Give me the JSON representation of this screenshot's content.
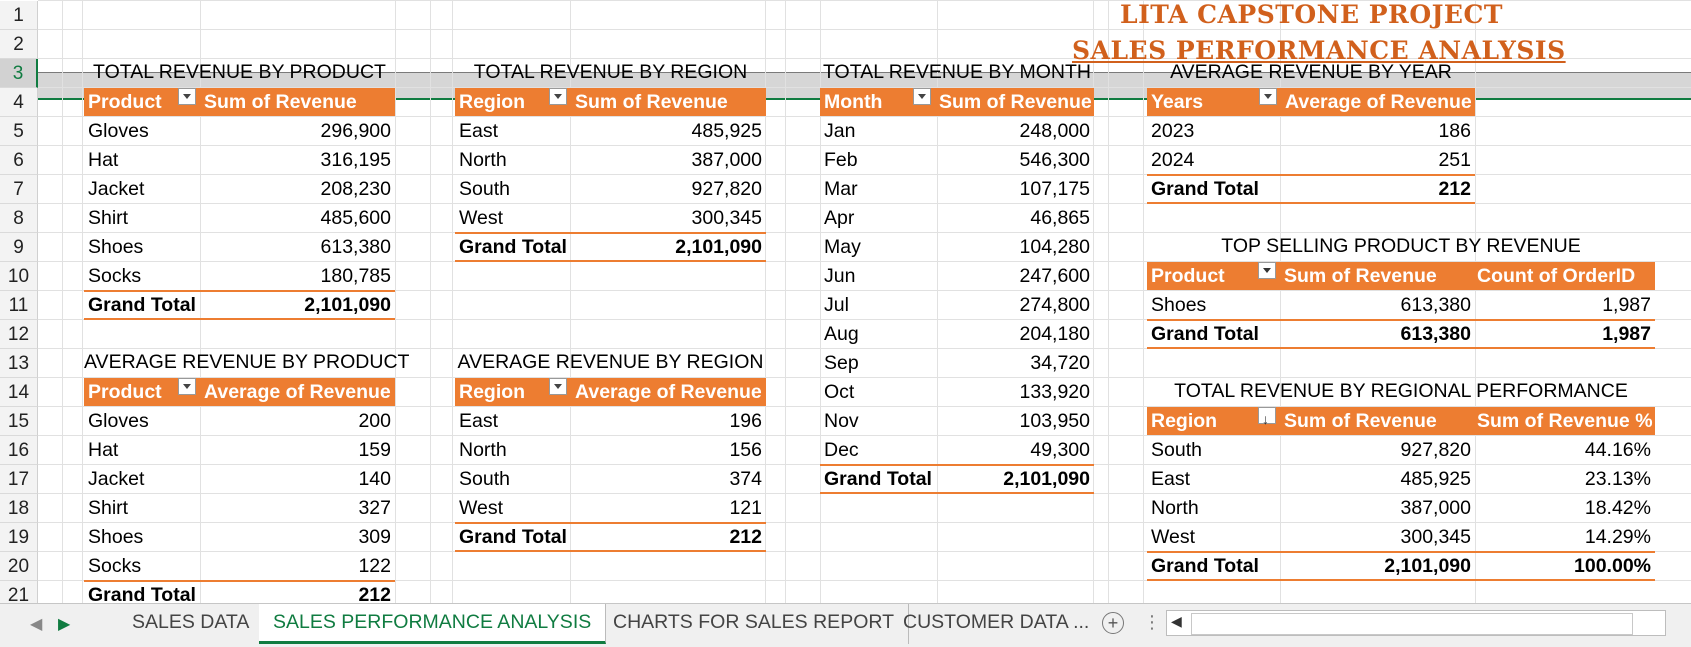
{
  "title": {
    "line1": "LITA CAPSTONE PROJECT",
    "line2": "SALES PERFORMANCE ANALYSIS"
  },
  "row_numbers": [
    "1",
    "2",
    "3",
    "4",
    "5",
    "6",
    "7",
    "8",
    "9",
    "10",
    "11",
    "12",
    "13",
    "14",
    "15",
    "16",
    "17",
    "18",
    "19",
    "20",
    "21"
  ],
  "sections": {
    "product": {
      "title": "TOTAL REVENUE BY PRODUCT",
      "h1": "Product",
      "h2": "Sum of Revenue",
      "rows": [
        [
          "Gloves",
          "296,900"
        ],
        [
          "Hat",
          "316,195"
        ],
        [
          "Jacket",
          "208,230"
        ],
        [
          "Shirt",
          "485,600"
        ],
        [
          "Shoes",
          "613,380"
        ],
        [
          "Socks",
          "180,785"
        ]
      ],
      "total_label": "Grand Total",
      "total": "2,101,090"
    },
    "region": {
      "title": "TOTAL REVENUE BY REGION",
      "h1": "Region",
      "h2": "Sum of Revenue",
      "rows": [
        [
          "East",
          "485,925"
        ],
        [
          "North",
          "387,000"
        ],
        [
          "South",
          "927,820"
        ],
        [
          "West",
          "300,345"
        ]
      ],
      "total_label": "Grand Total",
      "total": "2,101,090"
    },
    "month": {
      "title": "TOTAL REVENUE BY MONTH",
      "h1": "Month",
      "h2": "Sum of Revenue",
      "rows": [
        [
          "Jan",
          "248,000"
        ],
        [
          "Feb",
          "546,300"
        ],
        [
          "Mar",
          "107,175"
        ],
        [
          "Apr",
          "46,865"
        ],
        [
          "May",
          "104,280"
        ],
        [
          "Jun",
          "247,600"
        ],
        [
          "Jul",
          "274,800"
        ],
        [
          "Aug",
          "204,180"
        ],
        [
          "Sep",
          "34,720"
        ],
        [
          "Oct",
          "133,920"
        ],
        [
          "Nov",
          "103,950"
        ],
        [
          "Dec",
          "49,300"
        ]
      ],
      "total_label": "Grand Total",
      "total": "2,101,090"
    },
    "year": {
      "title": "AVERAGE REVENUE BY YEAR",
      "h1": "Years",
      "h2": "Average of Revenue",
      "rows": [
        [
          "2023",
          "186"
        ],
        [
          "2024",
          "251"
        ]
      ],
      "total_label": "Grand Total",
      "total": "212"
    },
    "avg_product": {
      "title": "AVERAGE REVENUE BY PRODUCT",
      "h1": "Product",
      "h2": "Average of Revenue",
      "rows": [
        [
          "Gloves",
          "200"
        ],
        [
          "Hat",
          "159"
        ],
        [
          "Jacket",
          "140"
        ],
        [
          "Shirt",
          "327"
        ],
        [
          "Shoes",
          "309"
        ],
        [
          "Socks",
          "122"
        ]
      ],
      "total_label": "Grand Total",
      "total": "212"
    },
    "avg_region": {
      "title": "AVERAGE REVENUE BY REGION",
      "h1": "Region",
      "h2": "Average of Revenue",
      "rows": [
        [
          "East",
          "196"
        ],
        [
          "North",
          "156"
        ],
        [
          "South",
          "374"
        ],
        [
          "West",
          "121"
        ]
      ],
      "total_label": "Grand Total",
      "total": "212"
    },
    "top": {
      "title": "TOP SELLING PRODUCT BY REVENUE",
      "h1": "Product",
      "h2": "Sum of Revenue",
      "h3": "Count of OrderID",
      "rows": [
        [
          "Shoes",
          "613,380",
          "1,987"
        ]
      ],
      "total_label": "Grand Total",
      "total": "613,380",
      "total2": "1,987"
    },
    "regional": {
      "title": "TOTAL REVENUE BY REGIONAL PERFORMANCE",
      "h1": "Region",
      "h2": "Sum of Revenue",
      "h3": "Sum of Revenue %",
      "rows": [
        [
          "South",
          "927,820",
          "44.16%"
        ],
        [
          "East",
          "485,925",
          "23.13%"
        ],
        [
          "North",
          "387,000",
          "18.42%"
        ],
        [
          "West",
          "300,345",
          "14.29%"
        ]
      ],
      "total_label": "Grand Total",
      "total": "2,101,090",
      "total2": "100.00%"
    }
  },
  "tabs": {
    "sales_data": "SALES DATA",
    "analysis": "SALES PERFORMANCE ANALYSIS",
    "charts": "CHARTS FOR SALES REPORT",
    "customer": "CUSTOMER DATA ...",
    "add": "+"
  },
  "colors": {
    "accent": "#ed7d31",
    "title": "#d1601c",
    "selection": "#107c41"
  }
}
